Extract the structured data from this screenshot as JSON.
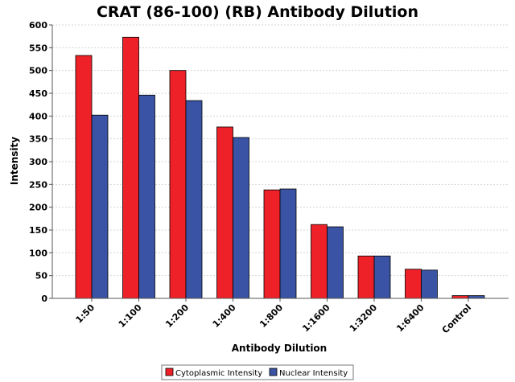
{
  "colors": {
    "cytoplasmic": "#ee2128",
    "nuclear": "#3a53a4",
    "grid": "#d4d4d4",
    "axis": "#555555"
  },
  "chart_data": {
    "type": "bar",
    "title": "CRAT (86-100) (RB) Antibody Dilution",
    "xlabel": "Antibody Dilution",
    "ylabel": "Intensity",
    "ylim": [
      0,
      600
    ],
    "yticks": [
      0,
      50,
      100,
      150,
      200,
      250,
      300,
      350,
      400,
      450,
      500,
      550,
      600
    ],
    "grid": true,
    "legend_position": "bottom",
    "categories": [
      "1:50",
      "1:100",
      "1:200",
      "1:400",
      "1:800",
      "1:1600",
      "1:3200",
      "1:6400",
      "Control"
    ],
    "series": [
      {
        "name": "Cytoplasmic Intensity",
        "color": "#ee2128",
        "values": [
          533,
          573,
          500,
          376,
          238,
          162,
          93,
          64,
          6
        ]
      },
      {
        "name": "Nuclear Intensity",
        "color": "#3a53a4",
        "values": [
          402,
          446,
          434,
          353,
          240,
          157,
          93,
          62,
          6
        ]
      }
    ]
  }
}
